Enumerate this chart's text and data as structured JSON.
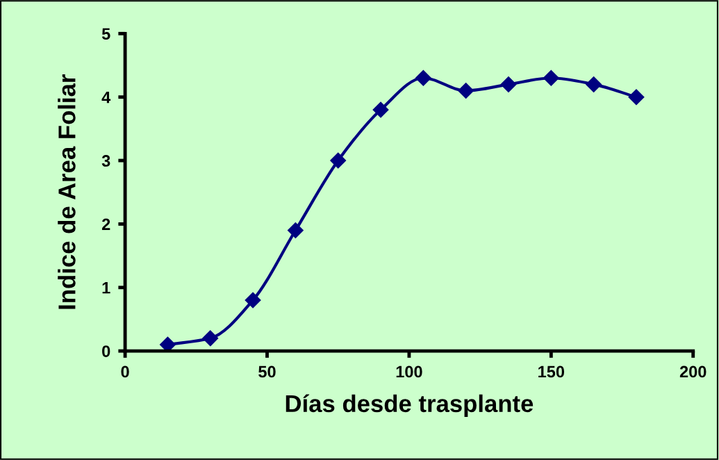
{
  "chart_data": {
    "type": "line",
    "xlabel": "Días desde trasplante",
    "ylabel": "Indice de Area Foliar",
    "x": [
      15,
      30,
      45,
      60,
      75,
      90,
      105,
      120,
      135,
      150,
      165,
      180
    ],
    "series": [
      {
        "color": "#000080",
        "values": [
          0.1,
          0.2,
          0.8,
          1.9,
          3.0,
          3.8,
          4.3,
          4.1,
          4.2,
          4.3,
          4.2,
          4.0
        ]
      }
    ],
    "xlim": [
      0,
      200
    ],
    "xticks": [
      0,
      50,
      100,
      150,
      200
    ],
    "ylim": [
      0,
      5
    ],
    "yticks": [
      0,
      1,
      2,
      3,
      4,
      5
    ],
    "grid": false,
    "legend": false,
    "marker": "diamond",
    "line_style": "solid"
  }
}
